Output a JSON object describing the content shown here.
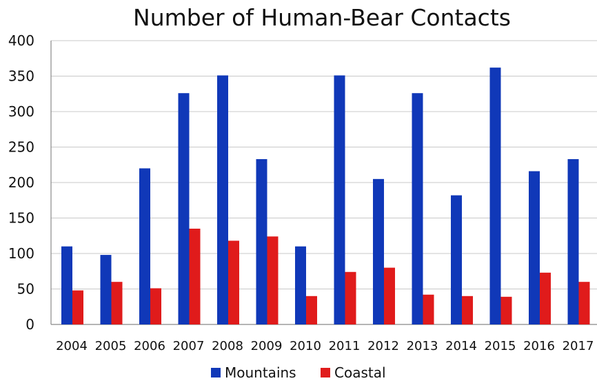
{
  "chart_data": {
    "type": "bar",
    "title": "Number of Human-Bear Contacts",
    "xlabel": "",
    "ylabel": "",
    "ylim": [
      0,
      400
    ],
    "yticks": [
      0,
      50,
      100,
      150,
      200,
      250,
      300,
      350,
      400
    ],
    "categories": [
      "2004",
      "2005",
      "2006",
      "2007",
      "2008",
      "2009",
      "2010",
      "2011",
      "2012",
      "2013",
      "2014",
      "2015",
      "2016",
      "2017"
    ],
    "series": [
      {
        "name": "Mountains",
        "color": "#1038b8",
        "values": [
          110,
          98,
          220,
          326,
          351,
          233,
          110,
          351,
          205,
          326,
          182,
          362,
          216,
          233
        ]
      },
      {
        "name": "Coastal",
        "color": "#e01b1b",
        "values": [
          48,
          60,
          51,
          135,
          118,
          124,
          40,
          74,
          80,
          42,
          40,
          39,
          73,
          60
        ]
      }
    ],
    "grid": true,
    "legend_position": "bottom-center"
  }
}
